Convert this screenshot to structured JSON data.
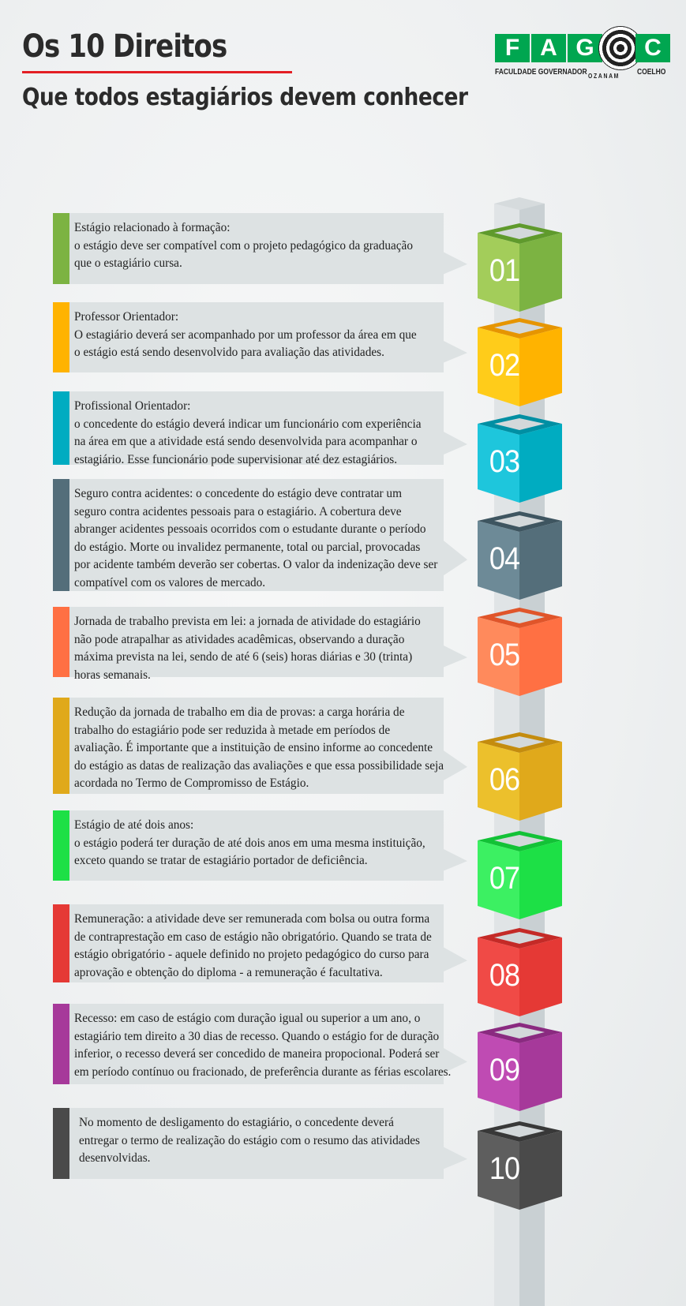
{
  "header": {
    "title": "Os 10 Direitos",
    "subtitle": "Que todos estagiários devem conhecer"
  },
  "logo": {
    "letters": [
      "F",
      "A",
      "G",
      "C"
    ],
    "caption_left": "FACULDADE GOVERNADOR",
    "caption_mid": "OZANAM",
    "caption_right": "COELHO",
    "brand_color": "#00a650"
  },
  "items": [
    {
      "number": "01",
      "color": "#7cb342",
      "light": "#a3cd5a",
      "dark": "#5f9a2c",
      "lines": [
        "Estágio relacionado à formação:",
        "o estágio deve ser compatível com o projeto pedagógico da graduação",
        "que o estagiário cursa."
      ]
    },
    {
      "number": "02",
      "color": "#ffb300",
      "light": "#ffcc1a",
      "dark": "#e69500",
      "lines": [
        "Professor Orientador:",
        "O estagiário deverá ser acompanhado por um professor da área em que",
        "o estágio está sendo desenvolvido para avaliação das atividades."
      ]
    },
    {
      "number": "03",
      "color": "#00acc1",
      "light": "#1ec6dc",
      "dark": "#008fa3",
      "lines": [
        "Profissional Orientador:",
        "o concedente do estágio deverá indicar um funcionário com experiência",
        "na área em que a atividade está sendo desenvolvida para acompanhar o",
        "estagiário. Esse funcionário pode supervisionar até dez estagiários."
      ]
    },
    {
      "number": "04",
      "color": "#546e7a",
      "light": "#6d8a97",
      "dark": "#3e5560",
      "lines": [
        "Seguro contra acidentes: o concedente do estágio deve contratar um",
        "seguro contra acidentes pessoais para o estagiário. A cobertura deve",
        "abranger acidentes pessoais ocorridos com o estudante durante o período",
        "do estágio. Morte ou invalidez permanente, total ou parcial, provocadas",
        "por acidente também deverão ser cobertas. O valor da indenização deve ser",
        "compatível com os valores de mercado."
      ]
    },
    {
      "number": "05",
      "color": "#ff7043",
      "light": "#ff8a5c",
      "dark": "#e0552a",
      "lines": [
        "Jornada de trabalho prevista em lei: a jornada de atividade do estagiário",
        "não pode atrapalhar as atividades acadêmicas, observando a duração",
        "máxima prevista na lei, sendo de até 6 (seis) horas diárias e 30 (trinta)",
        "horas semanais."
      ]
    },
    {
      "number": "06",
      "color": "#e0a91b",
      "light": "#ecc02c",
      "dark": "#c48c0e",
      "lines": [
        "Redução da jornada de trabalho em dia de provas: a carga horária de",
        "trabalho do estagiário pode ser reduzida à metade em períodos de",
        "avaliação. É importante que a instituição de ensino informe ao concedente",
        "do estágio as datas de realização das avaliações e que essa possibilidade seja",
        "acordada no Termo de Compromisso de Estágio."
      ]
    },
    {
      "number": "07",
      "color": "#1de046",
      "light": "#3cf062",
      "dark": "#12c236",
      "lines": [
        "Estágio de até dois anos:",
        "o estágio poderá ter duração de até dois anos em uma mesma instituição,",
        "exceto quando se tratar de estagiário portador de deficiência."
      ]
    },
    {
      "number": "08",
      "color": "#e53935",
      "light": "#f04a46",
      "dark": "#c42a27",
      "lines": [
        "Remuneração: a atividade deve ser remunerada com bolsa ou outra forma",
        "de contraprestação em caso de estágio não obrigatório. Quando se trata de",
        "estágio obrigatório - aquele definido no projeto pedagógico do curso para",
        "aprovação e obtenção do diploma - a remuneração é facultativa."
      ]
    },
    {
      "number": "09",
      "color": "#a6399a",
      "light": "#bf4bb3",
      "dark": "#8a2a80",
      "lines": [
        "Recesso: em caso de estágio com duração igual ou superior a um ano, o",
        "estagiário tem direito a 30 dias de recesso. Quando o estágio for de duração",
        "inferior, o recesso deverá ser concedido de maneira propocional. Poderá ser",
        "em período contínuo ou fracionado, de preferência durante as férias escolares."
      ]
    },
    {
      "number": "10",
      "color": "#4a4a4a",
      "light": "#5e5e5e",
      "dark": "#383838",
      "lines": [
        "No momento de desligamento do estagiário, o concedente deverá",
        "entregar o termo de realização do estágio com o resumo das atividades",
        "desenvolvidas."
      ]
    }
  ]
}
